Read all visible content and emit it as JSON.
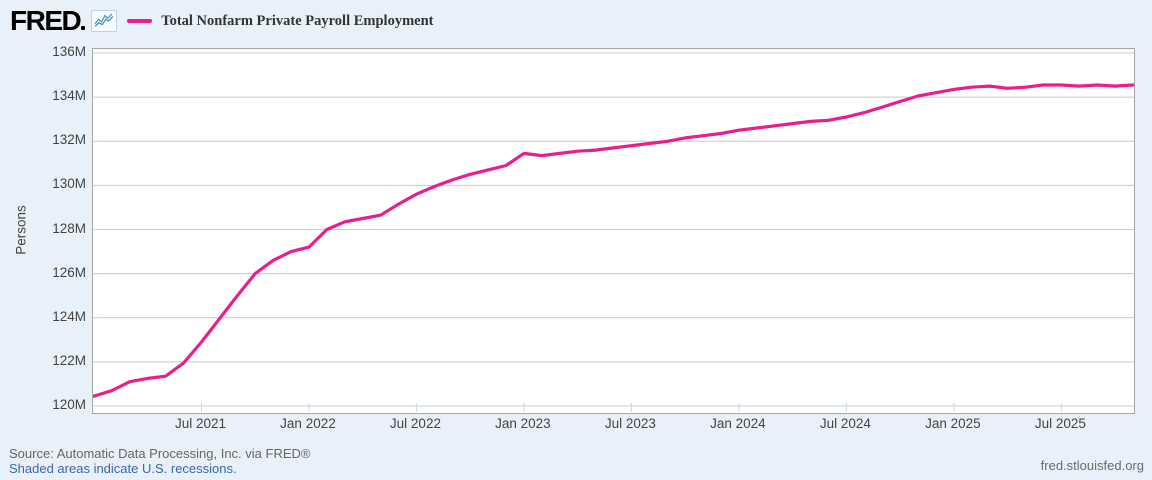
{
  "header": {
    "logo_text": "FRED",
    "legend": {
      "series_label": "Total Nonfarm Private Payroll Employment",
      "swatch_color": "#e91e8c"
    }
  },
  "footer": {
    "source_line": "Source: Automatic Data Processing, Inc. via FRED®",
    "recession_note": "Shaded areas indicate U.S. recessions.",
    "site_link": "fred.stlouisfed.org"
  },
  "chart_data": {
    "type": "line",
    "title": "Total Nonfarm Private Payroll Employment",
    "ylabel": "Persons",
    "units": "Millions of Persons",
    "grid": true,
    "legend_position": "top-left",
    "colors": {
      "line": "#e91e8c",
      "gridline": "#c9c9c9",
      "plot_border": "#a6a6a6",
      "tick": "#c9d6e4",
      "background": "#e8f1fa",
      "plot_background": "#ffffff",
      "link_blue": "#3a67ad"
    },
    "y_axis": {
      "min": 120,
      "max": 136,
      "tick_step": 2,
      "tick_labels": [
        "120M",
        "122M",
        "124M",
        "126M",
        "128M",
        "130M",
        "132M",
        "134M",
        "136M"
      ]
    },
    "x_ticks": [
      {
        "label": "Jul 2021",
        "month_index": 6
      },
      {
        "label": "Jan 2022",
        "month_index": 12
      },
      {
        "label": "Jul 2022",
        "month_index": 18
      },
      {
        "label": "Jan 2023",
        "month_index": 24
      },
      {
        "label": "Jul 2023",
        "month_index": 30
      },
      {
        "label": "Jan 2024",
        "month_index": 36
      },
      {
        "label": "Jul 2024",
        "month_index": 42
      },
      {
        "label": "Jan 2025",
        "month_index": 48
      },
      {
        "label": "Jul 2025",
        "month_index": 54
      }
    ],
    "series": [
      {
        "name": "Total Nonfarm Private Payroll Employment",
        "color": "#e91e8c",
        "months": [
          "2021-01",
          "2021-02",
          "2021-03",
          "2021-04",
          "2021-05",
          "2021-06",
          "2021-07",
          "2021-08",
          "2021-09",
          "2021-10",
          "2021-11",
          "2021-12",
          "2022-01",
          "2022-02",
          "2022-03",
          "2022-04",
          "2022-05",
          "2022-06",
          "2022-07",
          "2022-08",
          "2022-09",
          "2022-10",
          "2022-11",
          "2022-12",
          "2023-01",
          "2023-02",
          "2023-03",
          "2023-04",
          "2023-05",
          "2023-06",
          "2023-07",
          "2023-08",
          "2023-09",
          "2023-10",
          "2023-11",
          "2023-12",
          "2024-01",
          "2024-02",
          "2024-03",
          "2024-04",
          "2024-05",
          "2024-06",
          "2024-07",
          "2024-08",
          "2024-09",
          "2024-10",
          "2024-11",
          "2024-12",
          "2025-01",
          "2025-02",
          "2025-03",
          "2025-04",
          "2025-05",
          "2025-06",
          "2025-07",
          "2025-08",
          "2025-09",
          "2025-10",
          "2025-11"
        ],
        "values_millions": [
          120.45,
          120.7,
          121.1,
          121.25,
          121.35,
          121.95,
          122.9,
          123.95,
          125.0,
          126.0,
          126.6,
          127.0,
          127.2,
          128.0,
          128.35,
          128.5,
          128.65,
          129.15,
          129.6,
          129.95,
          130.25,
          130.5,
          130.7,
          130.9,
          131.45,
          131.35,
          131.45,
          131.55,
          131.6,
          131.7,
          131.8,
          131.9,
          132.0,
          132.15,
          132.25,
          132.35,
          132.5,
          132.6,
          132.7,
          132.8,
          132.9,
          132.95,
          133.1,
          133.3,
          133.55,
          133.8,
          134.05,
          134.2,
          134.35,
          134.45,
          134.5,
          134.4,
          134.45,
          134.55,
          134.55,
          134.5,
          134.55,
          134.5,
          134.55
        ]
      }
    ]
  }
}
